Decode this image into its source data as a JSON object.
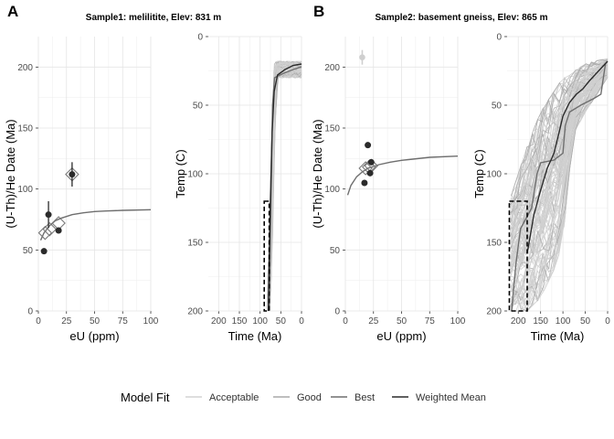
{
  "figure": {
    "panel_labels": [
      "A",
      "B"
    ],
    "legend": {
      "title": "Model Fit",
      "entries": [
        {
          "label": "Acceptable",
          "color": "#d3d3d3"
        },
        {
          "label": "Good",
          "color": "#a8a8a8"
        },
        {
          "label": "Best",
          "color": "#6e6e6e"
        },
        {
          "label": "Weighted Mean",
          "color": "#2b2b2b"
        }
      ]
    }
  },
  "chart_data": [
    {
      "panel": "A",
      "type": "scatter",
      "title": "Sample1: melilitite, Elev: 831 m",
      "xlabel": "eU (ppm)",
      "ylabel": "(U-Th)/He Date (Ma)",
      "xlim": [
        0,
        100
      ],
      "ylim": [
        0,
        225
      ],
      "xticks": [
        0,
        25,
        50,
        75,
        100
      ],
      "yticks": [
        0,
        50,
        100,
        150,
        200
      ],
      "grid": true,
      "observed": [
        {
          "x": 5,
          "y": 49,
          "err": 0
        },
        {
          "x": 9,
          "y": 79,
          "err": 11
        },
        {
          "x": 18,
          "y": 66,
          "err": 0
        },
        {
          "x": 30,
          "y": 112,
          "err": 10
        }
      ],
      "model_points": [
        {
          "x": 6,
          "y": 64
        },
        {
          "x": 10,
          "y": 67
        },
        {
          "x": 18,
          "y": 72
        },
        {
          "x": 30,
          "y": 112
        }
      ],
      "model_curve": [
        [
          2,
          58
        ],
        [
          5,
          64
        ],
        [
          10,
          70
        ],
        [
          15,
          74
        ],
        [
          20,
          76
        ],
        [
          30,
          79
        ],
        [
          40,
          80.5
        ],
        [
          50,
          81.5
        ],
        [
          60,
          82
        ],
        [
          75,
          82.5
        ],
        [
          100,
          83
        ]
      ]
    },
    {
      "panel": "A",
      "type": "line",
      "title": "",
      "xlabel": "Time (Ma)",
      "ylabel": "Temp (C)",
      "xlim": [
        225,
        0
      ],
      "ylim": [
        200,
        0
      ],
      "xticks": [
        200,
        150,
        100,
        50,
        0
      ],
      "yticks": [
        0,
        50,
        100,
        150,
        200
      ],
      "grid": true,
      "constraint_box": {
        "time": [
          90,
          78
        ],
        "temp": [
          120,
          200
        ]
      },
      "weighted_mean": [
        [
          80,
          200
        ],
        [
          78,
          165
        ],
        [
          75,
          120
        ],
        [
          71,
          70
        ],
        [
          66,
          40
        ],
        [
          58,
          28
        ],
        [
          40,
          24
        ],
        [
          20,
          21
        ],
        [
          0,
          20
        ]
      ],
      "best": [
        [
          78,
          200
        ],
        [
          74,
          120
        ],
        [
          70,
          50
        ],
        [
          65,
          30
        ],
        [
          45,
          27
        ],
        [
          20,
          24
        ],
        [
          0,
          22
        ]
      ],
      "envelope": {
        "time": [
          84,
          76,
          70,
          66,
          60,
          0
        ],
        "tmin": [
          200,
          120,
          50,
          20,
          18,
          18
        ],
        "tmax": [
          200,
          200,
          150,
          90,
          30,
          30
        ]
      }
    },
    {
      "panel": "B",
      "type": "scatter",
      "title": "Sample2: basement gneiss, Elev: 865 m",
      "xlabel": "eU (ppm)",
      "ylabel": "(U-Th)/He Date (Ma)",
      "xlim": [
        0,
        100
      ],
      "ylim": [
        0,
        225
      ],
      "xticks": [
        0,
        25,
        50,
        75,
        100
      ],
      "yticks": [
        0,
        50,
        100,
        150,
        200
      ],
      "grid": true,
      "observed": [
        {
          "x": 17,
          "y": 105,
          "err": 0
        },
        {
          "x": 20,
          "y": 136,
          "err": 0
        },
        {
          "x": 22,
          "y": 113,
          "err": 0
        },
        {
          "x": 23,
          "y": 122,
          "err": 0
        }
      ],
      "outlier": {
        "x": 15,
        "y": 208,
        "err": 6
      },
      "model_points": [
        {
          "x": 18,
          "y": 117
        },
        {
          "x": 21,
          "y": 118
        },
        {
          "x": 23,
          "y": 119
        }
      ],
      "model_curve": [
        [
          2,
          95
        ],
        [
          5,
          103
        ],
        [
          10,
          110
        ],
        [
          15,
          114
        ],
        [
          20,
          117
        ],
        [
          30,
          120
        ],
        [
          40,
          122
        ],
        [
          50,
          123.5
        ],
        [
          60,
          124.5
        ],
        [
          75,
          126
        ],
        [
          100,
          127
        ]
      ]
    },
    {
      "panel": "B",
      "type": "line",
      "title": "",
      "xlabel": "Time (Ma)",
      "ylabel": "Temp (C)",
      "xlim": [
        225,
        0
      ],
      "ylim": [
        200,
        0
      ],
      "xticks": [
        200,
        150,
        100,
        50,
        0
      ],
      "yticks": [
        0,
        50,
        100,
        150,
        200
      ],
      "grid": true,
      "constraint_box": {
        "time": [
          220,
          180
        ],
        "temp": [
          120,
          200
        ]
      },
      "weighted_mean": [
        [
          180,
          158
        ],
        [
          165,
          130
        ],
        [
          150,
          112
        ],
        [
          135,
          96
        ],
        [
          120,
          85
        ],
        [
          110,
          72
        ],
        [
          100,
          58
        ],
        [
          85,
          48
        ],
        [
          70,
          42
        ],
        [
          55,
          38
        ],
        [
          40,
          32
        ],
        [
          20,
          25
        ],
        [
          0,
          18
        ]
      ],
      "best": [
        [
          215,
          200
        ],
        [
          205,
          165
        ],
        [
          195,
          140
        ],
        [
          170,
          125
        ],
        [
          158,
          100
        ],
        [
          150,
          92
        ],
        [
          120,
          90
        ],
        [
          100,
          85
        ],
        [
          95,
          65
        ],
        [
          85,
          55
        ],
        [
          60,
          50
        ],
        [
          30,
          45
        ],
        [
          15,
          42
        ],
        [
          5,
          20
        ]
      ],
      "envelope": {
        "time": [
          220,
          180,
          150,
          120,
          100,
          90,
          75,
          50,
          30,
          0
        ],
        "tmin": [
          120,
          80,
          55,
          40,
          30,
          30,
          25,
          20,
          18,
          16
        ],
        "tmax": [
          200,
          200,
          190,
          170,
          150,
          110,
          70,
          55,
          45,
          30
        ]
      }
    }
  ]
}
